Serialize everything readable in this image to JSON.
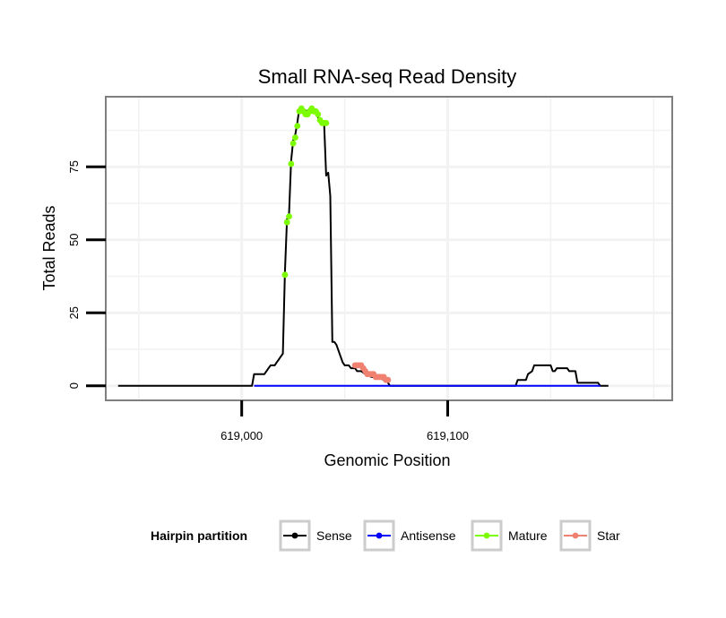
{
  "chart_data": {
    "type": "line",
    "title": "Small RNA-seq Read Density",
    "xlabel": "Genomic Position",
    "ylabel": "Total Reads",
    "xlim": [
      618934,
      619209
    ],
    "ylim": [
      -5,
      99
    ],
    "x_ticks": [
      {
        "value": 619000,
        "label": "619,000"
      },
      {
        "value": 619100,
        "label": "619,100"
      }
    ],
    "y_ticks": [
      {
        "value": 0,
        "label": "0"
      },
      {
        "value": 25,
        "label": "25"
      },
      {
        "value": 50,
        "label": "50"
      },
      {
        "value": 75,
        "label": "75"
      }
    ],
    "grid": true,
    "legend": {
      "title": "Hairpin partition",
      "position": "bottom",
      "entries": [
        {
          "name": "Sense",
          "color": "#000000"
        },
        {
          "name": "Antisense",
          "color": "#0000ff"
        },
        {
          "name": "Mature",
          "color": "#7cfc00"
        },
        {
          "name": "Star",
          "color": "#f08070"
        }
      ]
    },
    "series": [
      {
        "name": "Sense",
        "color": "#000000",
        "style": "line",
        "x": [
          618940,
          619005,
          619006,
          619011,
          619012,
          619013,
          619014,
          619016,
          619017,
          619018,
          619019,
          619020,
          619021,
          619022,
          619023,
          619024,
          619025,
          619026,
          619027,
          619028,
          619029,
          619032,
          619033,
          619035,
          619036,
          619037,
          619038,
          619040,
          619041,
          619042,
          619043,
          619044,
          619045,
          619046,
          619048,
          619049,
          619050,
          619052,
          619053,
          619055,
          619056,
          619058,
          619060,
          619063,
          619066,
          619069,
          619070,
          619071,
          619072,
          619133,
          619134,
          619138,
          619139,
          619141,
          619142,
          619150,
          619151,
          619152,
          619153,
          619158,
          619159,
          619162,
          619163,
          619173,
          619174,
          619177,
          619178
        ],
        "y": [
          0,
          0,
          4,
          4,
          5,
          6,
          7,
          7,
          8,
          9,
          10,
          11,
          39,
          57,
          59,
          77,
          84,
          86,
          90,
          95,
          95,
          94,
          95,
          95,
          94,
          92,
          91,
          90,
          72,
          73,
          65,
          15,
          15,
          14,
          10,
          8,
          7,
          7,
          6,
          6,
          5,
          5,
          4,
          3,
          3,
          2,
          2,
          1,
          0,
          0,
          2,
          2,
          4,
          5,
          7,
          7,
          5,
          5,
          6,
          6,
          5,
          5,
          1,
          1,
          0,
          0,
          0
        ]
      },
      {
        "name": "Antisense",
        "color": "#0000ff",
        "style": "line",
        "x": [
          619006,
          619174
        ],
        "y": [
          0,
          0
        ]
      },
      {
        "name": "Mature",
        "color": "#7cfc00",
        "style": "points",
        "x": [
          619021,
          619022,
          619023,
          619024,
          619025,
          619026,
          619027,
          619028,
          619029,
          619030,
          619031,
          619032,
          619033,
          619034,
          619035,
          619036,
          619037,
          619038,
          619039,
          619040,
          619041
        ],
        "y": [
          38,
          56,
          58,
          76,
          83,
          85,
          89,
          94,
          95,
          94,
          93,
          93,
          94,
          95,
          94,
          94,
          93,
          91,
          90,
          90,
          90
        ]
      },
      {
        "name": "Star",
        "color": "#f08070",
        "style": "points",
        "x": [
          619055,
          619056,
          619057,
          619058,
          619059,
          619060,
          619061,
          619062,
          619063,
          619064,
          619065,
          619066,
          619067,
          619068,
          619069,
          619070,
          619071
        ],
        "y": [
          7,
          7,
          7,
          7,
          6,
          5,
          4,
          4,
          4,
          4,
          3,
          3,
          3,
          3,
          3,
          2,
          2
        ]
      }
    ]
  }
}
